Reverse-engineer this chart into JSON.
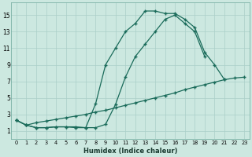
{
  "xlabel": "Humidex (Indice chaleur)",
  "background_color": "#cce8e0",
  "grid_color": "#aacfc8",
  "line_color": "#1a6b5a",
  "xlim": [
    -0.5,
    23.5
  ],
  "ylim": [
    0.0,
    16.5
  ],
  "xticks": [
    0,
    1,
    2,
    3,
    4,
    5,
    6,
    7,
    8,
    9,
    10,
    11,
    12,
    13,
    14,
    15,
    16,
    17,
    18,
    19,
    20,
    21,
    22,
    23
  ],
  "yticks": [
    1,
    3,
    5,
    7,
    9,
    11,
    13,
    15
  ],
  "line1_x": [
    0,
    1,
    2,
    3,
    4,
    5,
    6,
    7,
    8,
    9,
    10,
    11,
    12,
    13,
    14,
    15,
    16,
    17,
    18,
    19,
    20,
    21
  ],
  "line1_y": [
    2.3,
    1.7,
    1.4,
    1.4,
    1.5,
    1.5,
    1.5,
    1.4,
    4.3,
    9.0,
    11.0,
    13.0,
    14.0,
    15.5,
    15.5,
    15.2,
    15.2,
    14.5,
    13.5,
    10.5,
    9.0,
    7.2
  ],
  "line2_x": [
    0,
    1,
    2,
    3,
    4,
    5,
    6,
    7,
    8,
    9,
    10,
    11,
    12,
    13,
    14,
    15,
    16,
    17,
    18,
    19
  ],
  "line2_y": [
    2.3,
    1.7,
    1.4,
    1.4,
    1.5,
    1.5,
    1.4,
    1.4,
    1.4,
    1.8,
    4.2,
    7.5,
    10.0,
    11.5,
    13.0,
    14.5,
    15.0,
    14.0,
    13.0,
    10.0
  ],
  "line3_x": [
    0,
    1,
    2,
    3,
    4,
    5,
    6,
    7,
    8,
    9,
    10,
    11,
    12,
    13,
    14,
    15,
    16,
    17,
    18,
    19,
    20,
    21,
    22,
    23
  ],
  "line3_y": [
    2.3,
    1.7,
    2.0,
    2.2,
    2.4,
    2.6,
    2.8,
    3.0,
    3.3,
    3.5,
    3.8,
    4.1,
    4.4,
    4.7,
    5.0,
    5.3,
    5.6,
    6.0,
    6.3,
    6.6,
    6.9,
    7.2,
    7.4,
    7.5
  ]
}
